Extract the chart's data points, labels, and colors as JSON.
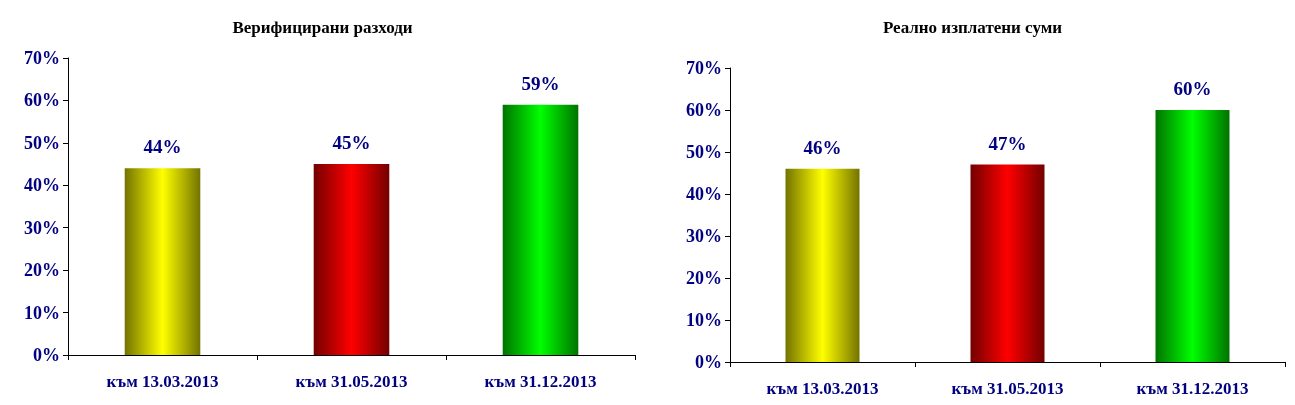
{
  "chart_data": [
    {
      "type": "bar",
      "title": "Верифицирани разходи",
      "categories": [
        "към 13.03.2013",
        "към 31.05.2013",
        "към 31.12.2013"
      ],
      "values": [
        44,
        45,
        59
      ],
      "colors": [
        "#ffff00",
        "#ff0000",
        "#00ff00"
      ],
      "value_labels": [
        "44%",
        "45%",
        "59%"
      ],
      "ylim": [
        0,
        70
      ],
      "yticks": [
        {
          "value": 0,
          "label": "0%"
        },
        {
          "value": 10,
          "label": "10%"
        },
        {
          "value": 20,
          "label": "20%"
        },
        {
          "value": 30,
          "label": "30%"
        },
        {
          "value": 40,
          "label": "40%"
        },
        {
          "value": 50,
          "label": "50%"
        },
        {
          "value": 60,
          "label": "60%"
        },
        {
          "value": 70,
          "label": "70%"
        }
      ],
      "grid": false
    },
    {
      "type": "bar",
      "title": "Реално изплатени суми",
      "categories": [
        "към 13.03.2013",
        "към 31.05.2013",
        "към 31.12.2013"
      ],
      "values": [
        46,
        47,
        60
      ],
      "colors": [
        "#ffff00",
        "#ff0000",
        "#00ff00"
      ],
      "value_labels": [
        "46%",
        "47%",
        "60%"
      ],
      "ylim": [
        0,
        70
      ],
      "yticks": [
        {
          "value": 0,
          "label": "0%"
        },
        {
          "value": 10,
          "label": "10%"
        },
        {
          "value": 20,
          "label": "20%"
        },
        {
          "value": 30,
          "label": "30%"
        },
        {
          "value": 40,
          "label": "40%"
        },
        {
          "value": 50,
          "label": "50%"
        },
        {
          "value": 60,
          "label": "60%"
        },
        {
          "value": 70,
          "label": "70%"
        }
      ],
      "grid": false
    }
  ]
}
